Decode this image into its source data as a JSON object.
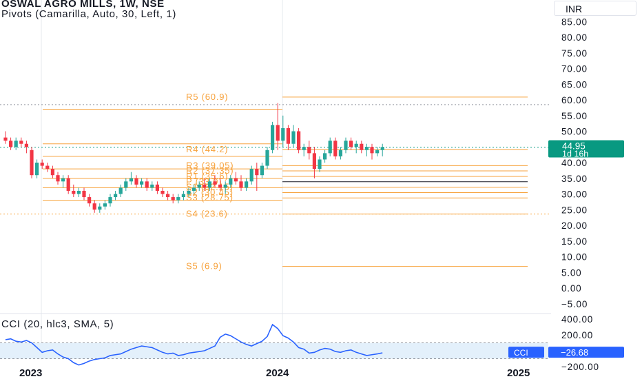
{
  "legend": {
    "symbol_line": "OSWAL AGRO MILLS, 1W, NSE",
    "pivots_line": "Pivots (Camarilla, Auto, 30, Left, 1)",
    "cci_line": "CCI (20, hlc3, SMA, 5)"
  },
  "currency": "INR",
  "price_badge": {
    "price": "44.95",
    "countdown": "1d 16h"
  },
  "cci_badge": {
    "label": "CCI",
    "value": "−26.68"
  },
  "colors": {
    "up": "#26a69a",
    "down": "#f23645",
    "pivot": "#f7a23c",
    "cci": "#2962ff",
    "badge": "#089981"
  },
  "chart_data": [
    {
      "type": "candlestick",
      "title": "OSWAL AGRO MILLS, 1W, NSE",
      "y_axis": {
        "ticks": [
          "85.00",
          "80.00",
          "75.00",
          "70.00",
          "65.00",
          "60.00",
          "55.00",
          "50.00",
          "45.00",
          "40.00",
          "35.00",
          "30.00",
          "25.00",
          "20.00",
          "15.00",
          "10.00",
          "5.00",
          "0.00",
          "−5.00"
        ],
        "range": [
          -5,
          87
        ]
      },
      "x_axis": {
        "ticks": [
          "2023",
          "2024",
          "2025"
        ]
      },
      "last_price": 44.95,
      "pivots_visible_labels": [
        {
          "label": "R5 (60.9)",
          "value": 60.9
        },
        {
          "label": "R4 (44.2)",
          "value": 44.2
        },
        {
          "label": "R3 (39.05)",
          "value": 39.05
        },
        {
          "label": "R2 (37.35)",
          "value": 37.35
        },
        {
          "label": "R1 (35.6)",
          "value": 35.6
        },
        {
          "label": "P (33.9)",
          "value": 33.9
        },
        {
          "label": "S1 (32.15)",
          "value": 32.15
        },
        {
          "label": "S2 (30.45)",
          "value": 30.45
        },
        {
          "label": "S3 (28.75)",
          "value": 28.75
        },
        {
          "label": "S4 (23.6)",
          "value": 23.6
        },
        {
          "label": "S5 (6.9)",
          "value": 6.9
        }
      ],
      "candles_ohlc": [
        [
          48,
          50,
          46,
          47
        ],
        [
          47,
          48,
          44,
          45
        ],
        [
          45,
          48,
          44,
          47
        ],
        [
          47,
          48,
          45,
          46
        ],
        [
          46,
          47,
          43,
          45
        ],
        [
          44,
          45,
          35,
          36
        ],
        [
          36,
          41,
          35,
          40
        ],
        [
          40,
          41,
          38,
          39
        ],
        [
          39,
          40,
          37,
          38
        ],
        [
          38,
          39,
          35,
          36
        ],
        [
          36,
          37,
          33,
          34
        ],
        [
          34,
          36,
          32,
          35
        ],
        [
          35,
          36,
          30,
          31
        ],
        [
          31,
          33,
          29,
          30
        ],
        [
          30,
          32,
          29,
          31
        ],
        [
          31,
          32,
          28,
          29
        ],
        [
          29,
          30,
          26,
          27
        ],
        [
          27,
          28,
          24,
          25
        ],
        [
          25,
          27,
          24,
          26
        ],
        [
          26,
          28,
          25,
          27
        ],
        [
          27,
          30,
          26,
          29
        ],
        [
          29,
          31,
          28,
          30
        ],
        [
          30,
          33,
          29,
          32
        ],
        [
          32,
          35,
          31,
          34
        ],
        [
          34,
          37,
          33,
          35
        ],
        [
          35,
          36,
          32,
          33
        ],
        [
          33,
          35,
          32,
          34
        ],
        [
          34,
          35,
          31,
          32
        ],
        [
          32,
          34,
          31,
          33
        ],
        [
          33,
          34,
          30,
          31
        ],
        [
          31,
          32,
          29,
          30
        ],
        [
          30,
          31,
          28,
          29
        ],
        [
          29,
          30,
          27,
          28
        ],
        [
          28,
          30,
          27,
          29
        ],
        [
          29,
          31,
          28,
          30
        ],
        [
          30,
          32,
          29,
          31
        ],
        [
          31,
          33,
          30,
          32
        ],
        [
          32,
          34,
          31,
          33
        ],
        [
          33,
          35,
          31,
          32
        ],
        [
          32,
          35,
          31,
          34
        ],
        [
          34,
          36,
          32,
          33
        ],
        [
          33,
          35,
          31,
          32
        ],
        [
          32,
          34,
          30,
          33
        ],
        [
          33,
          36,
          32,
          35
        ],
        [
          35,
          37,
          33,
          34
        ],
        [
          34,
          36,
          31,
          32
        ],
        [
          32,
          35,
          31,
          34
        ],
        [
          34,
          39,
          33,
          38
        ],
        [
          38,
          40,
          31,
          36
        ],
        [
          36,
          40,
          35,
          39
        ],
        [
          39,
          45,
          38,
          44
        ],
        [
          44,
          53,
          43,
          52
        ],
        [
          52,
          59,
          44,
          47
        ],
        [
          47,
          55,
          45,
          51
        ],
        [
          51,
          52,
          44,
          46
        ],
        [
          46,
          52,
          45,
          50
        ],
        [
          50,
          51,
          43,
          44
        ],
        [
          44,
          46,
          42,
          45
        ],
        [
          45,
          47,
          41,
          43
        ],
        [
          43,
          45,
          35,
          38
        ],
        [
          38,
          42,
          37,
          41
        ],
        [
          41,
          44,
          40,
          43
        ],
        [
          43,
          48,
          42,
          47
        ],
        [
          47,
          48,
          41,
          42
        ],
        [
          42,
          45,
          41,
          44
        ],
        [
          44,
          48,
          43,
          47
        ],
        [
          47,
          48,
          44,
          45
        ],
        [
          45,
          47,
          43,
          46
        ],
        [
          46,
          47,
          43,
          44
        ],
        [
          44,
          46,
          42,
          45
        ],
        [
          45,
          46,
          41,
          43
        ],
        [
          43,
          45,
          42,
          44
        ],
        [
          44,
          46,
          42,
          44.95
        ]
      ]
    },
    {
      "type": "line",
      "title": "CCI (20, hlc3, SMA, 5)",
      "y_axis": {
        "ticks": [
          "400.00",
          "200.00",
          "−200.00"
        ],
        "range": [
          -200,
          400
        ]
      },
      "last_value": -26.68,
      "values": [
        140,
        150,
        120,
        110,
        130,
        100,
        40,
        -20,
        0,
        10,
        -40,
        -80,
        -100,
        -150,
        -180,
        -160,
        -130,
        -110,
        -100,
        -90,
        -60,
        -50,
        -40,
        -10,
        20,
        40,
        60,
        50,
        40,
        10,
        -20,
        -40,
        -30,
        -60,
        -50,
        -30,
        -20,
        -10,
        0,
        30,
        60,
        170,
        210,
        190,
        150,
        110,
        80,
        60,
        90,
        120,
        180,
        330,
        280,
        190,
        160,
        110,
        40,
        20,
        -30,
        -20,
        10,
        30,
        20,
        -10,
        -20,
        0,
        10,
        -20,
        -40,
        -60,
        -50,
        -40,
        -26.68
      ]
    }
  ]
}
